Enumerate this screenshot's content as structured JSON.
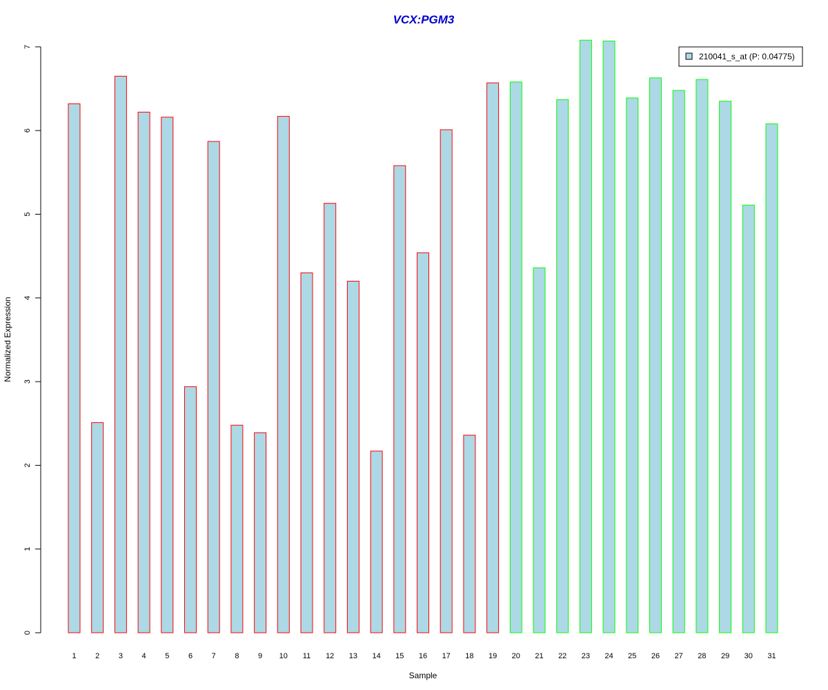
{
  "chart_data": {
    "type": "bar",
    "title": "VCX:PGM3",
    "xlabel": "Sample",
    "ylabel": "Normalized Expression",
    "ylim": [
      0,
      7
    ],
    "yticks": [
      "0",
      "1",
      "2",
      "3",
      "4",
      "5",
      "6",
      "7"
    ],
    "categories": [
      "1",
      "2",
      "3",
      "4",
      "5",
      "6",
      "7",
      "8",
      "9",
      "10",
      "11",
      "12",
      "13",
      "14",
      "15",
      "16",
      "17",
      "18",
      "19",
      "20",
      "21",
      "22",
      "23",
      "24",
      "25",
      "26",
      "27",
      "28",
      "29",
      "30",
      "31"
    ],
    "series": [
      {
        "name": "210041_s_at (P: 0.04775)",
        "values": [
          6.32,
          2.51,
          6.65,
          6.22,
          6.16,
          2.94,
          5.87,
          2.48,
          2.39,
          6.17,
          4.3,
          5.13,
          4.2,
          2.17,
          5.58,
          4.54,
          6.01,
          2.36,
          6.57,
          6.58,
          4.36,
          6.37,
          7.08,
          7.07,
          6.39,
          6.63,
          6.48,
          6.61,
          6.35,
          5.11,
          6.08
        ]
      }
    ],
    "group_border_colors": [
      "#ff0000",
      "#ff0000",
      "#ff0000",
      "#ff0000",
      "#ff0000",
      "#ff0000",
      "#ff0000",
      "#ff0000",
      "#ff0000",
      "#ff0000",
      "#ff0000",
      "#ff0000",
      "#ff0000",
      "#ff0000",
      "#ff0000",
      "#ff0000",
      "#ff0000",
      "#ff0000",
      "#ff0000",
      "#00ff00",
      "#00ff00",
      "#00ff00",
      "#00ff00",
      "#00ff00",
      "#00ff00",
      "#00ff00",
      "#00ff00",
      "#00ff00",
      "#00ff00",
      "#00ff00",
      "#00ff00"
    ],
    "bar_fill_color": "#add8e6",
    "title_color": "#0000cd",
    "legend_position": "top-right",
    "grid": false
  }
}
